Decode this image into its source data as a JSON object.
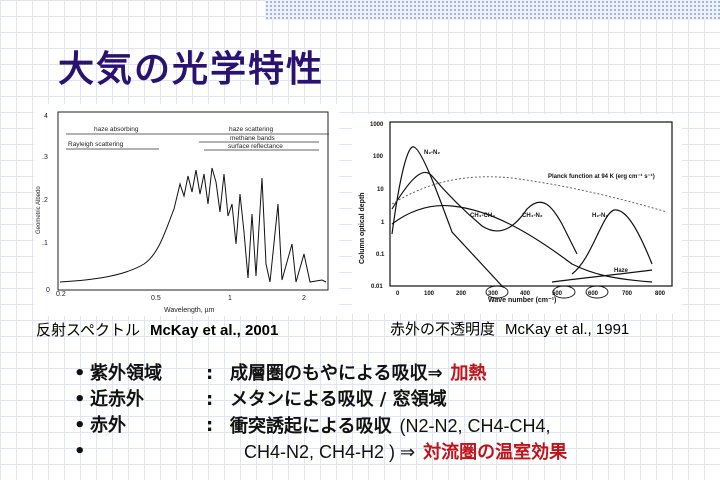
{
  "title": "大気の光学特性",
  "left_figure": {
    "caption": "反射スペクトル",
    "citation": "McKay et al., 2001",
    "ylabel": "Geometric Albedo",
    "xlabel": "Wavelength, µm",
    "x_ticks": [
      "0.2",
      "0.5",
      "1",
      "2"
    ],
    "y_ticks": [
      "4",
      ".3",
      ".2",
      ".1",
      "0"
    ],
    "annotations": [
      "haze absorbing",
      "haze scattering",
      "Rayleigh scattering",
      "methane bands",
      "surface reflectance"
    ]
  },
  "right_figure": {
    "caption": "赤外の不透明度",
    "citation": "McKay et al., 1991",
    "ylabel": "Column optical depth",
    "xlabel": "Wave number (cm⁻¹)",
    "x_ticks": [
      "0",
      "100",
      "200",
      "300",
      "400",
      "500",
      "600",
      "700",
      "800"
    ],
    "y_ticks": [
      "1000",
      "100",
      "10",
      "1",
      "0.1",
      "0.01"
    ],
    "curve_labels": [
      "N₂-N₂",
      "CH₄-CH₄",
      "CH₄-N₂",
      "H₂-N₂",
      "Haze"
    ],
    "planck_label": "Planck function at 94 K (erg cm⁻¹ s⁻¹)"
  },
  "bullets": [
    {
      "label": "紫外領域",
      "colon": ":",
      "text": "成層圏のもやによる吸収⇒",
      "highlight": "加熱"
    },
    {
      "label": "近赤外",
      "colon": ":",
      "text": "メタンによる吸収 / 窓領域"
    },
    {
      "label": "赤外",
      "colon": ":",
      "text": "衝突誘起による吸収",
      "formula": "(N2-N2, CH4-CH4,"
    },
    {
      "formula": "CH4-N2, CH4-H2 ) ⇒",
      "highlight": "対流圏の温室効果"
    }
  ],
  "bullet_symbol": "•",
  "colors": {
    "title": "#2a1370",
    "highlight": "#c0141b"
  }
}
